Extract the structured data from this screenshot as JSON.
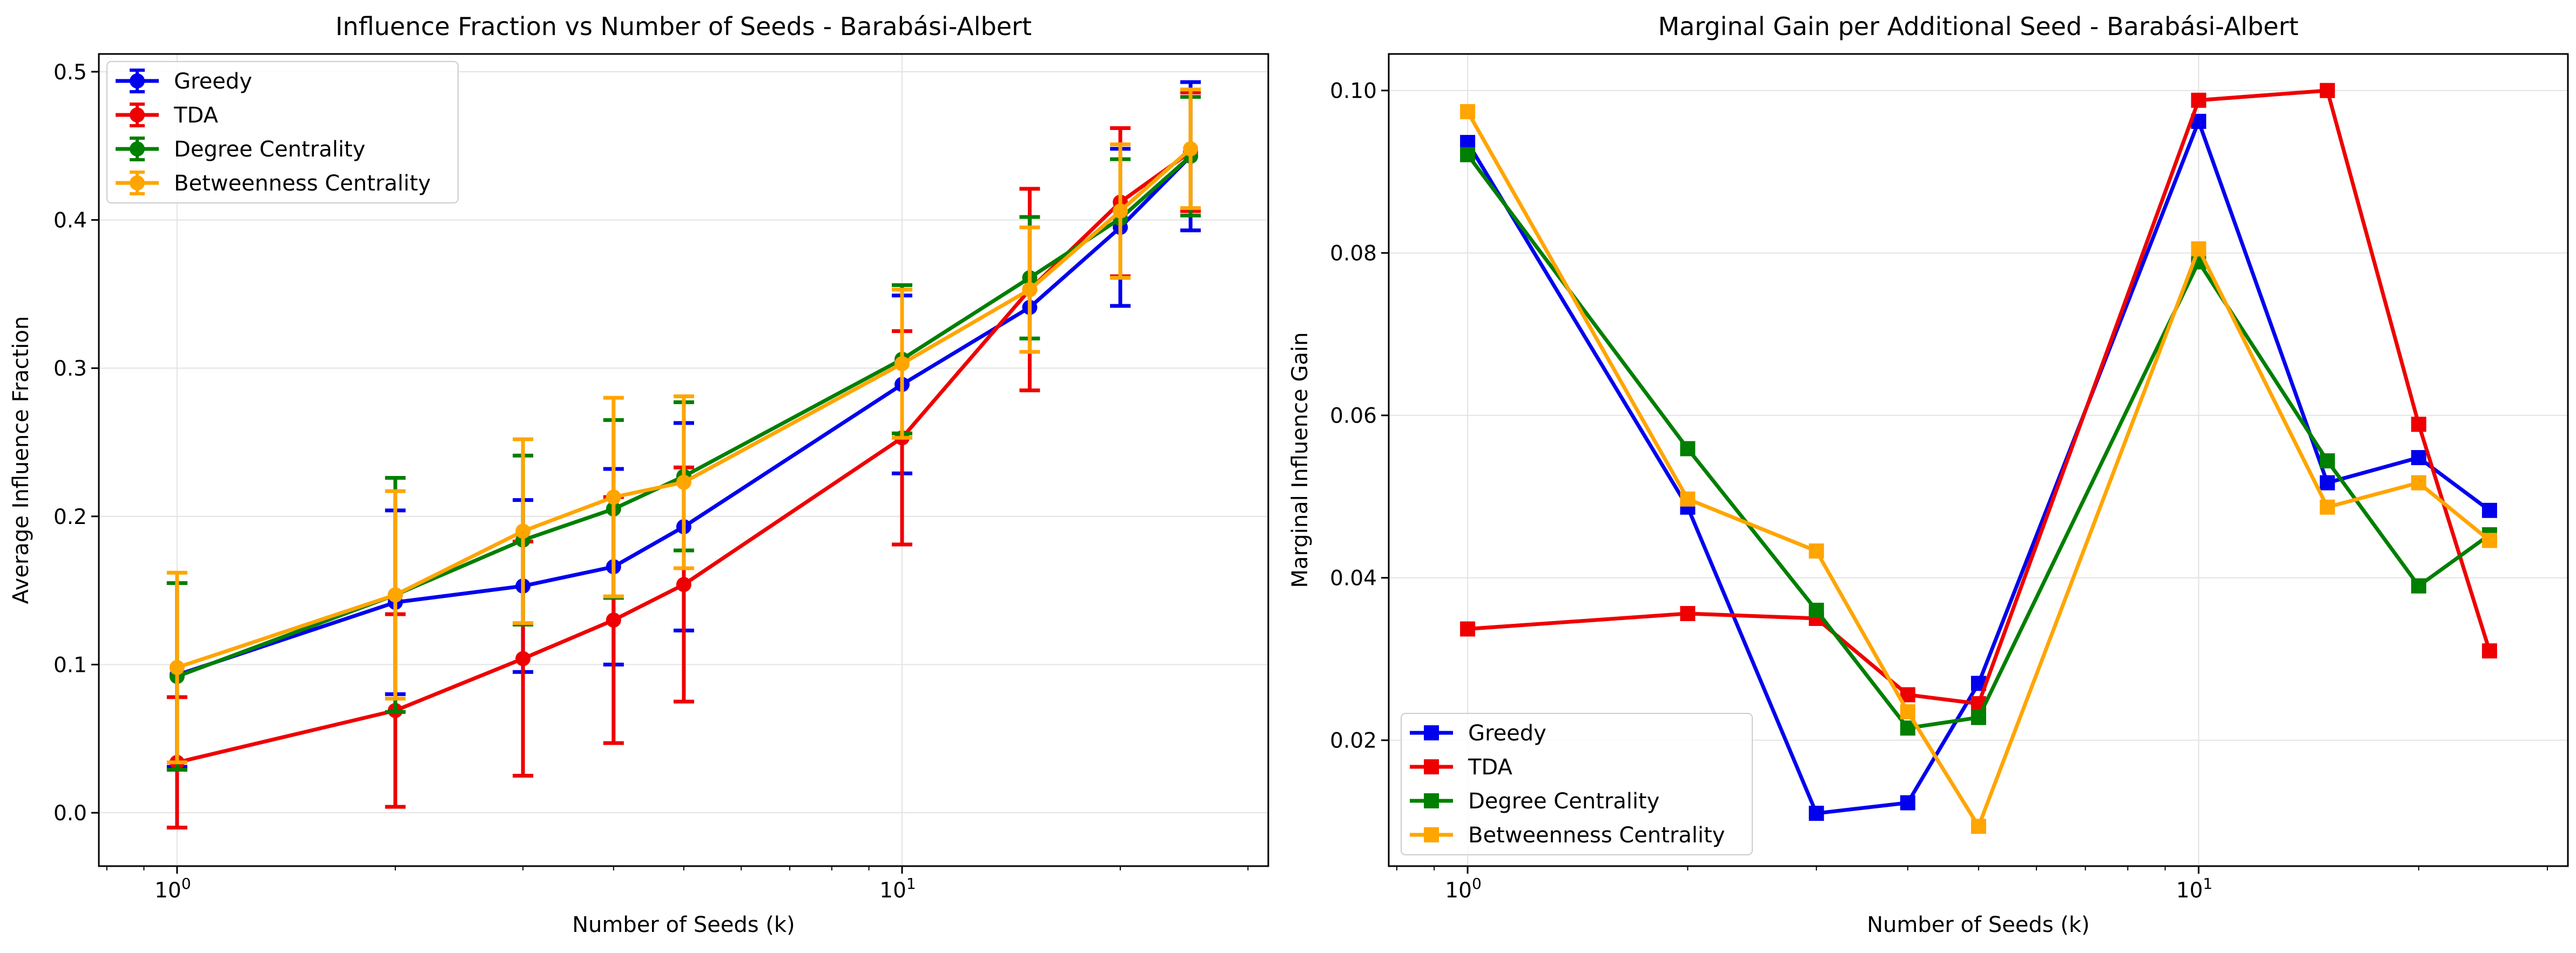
{
  "chart_data": [
    {
      "type": "line",
      "title": "Influence Fraction vs Number of Seeds - Barabási-Albert",
      "xlabel": "Number of Seeds (k)",
      "ylabel": "Average Influence Fraction",
      "x_scale": "log",
      "xlim": [
        0.78,
        32
      ],
      "ylim": [
        -0.036,
        0.512
      ],
      "x_ticks": [
        {
          "value": 1,
          "base": "10",
          "exp": "0"
        },
        {
          "value": 10,
          "base": "10",
          "exp": "1"
        }
      ],
      "y_ticks": [
        {
          "value": 0.0,
          "label": "0.0"
        },
        {
          "value": 0.1,
          "label": "0.1"
        },
        {
          "value": 0.2,
          "label": "0.2"
        },
        {
          "value": 0.3,
          "label": "0.3"
        },
        {
          "value": 0.4,
          "label": "0.4"
        },
        {
          "value": 0.5,
          "label": "0.5"
        }
      ],
      "grid": true,
      "legend_position": "top-left",
      "marker": "circle",
      "error_bars": true,
      "x": [
        1,
        2,
        3,
        4,
        5,
        10,
        15,
        20,
        25
      ],
      "series": [
        {
          "name": "Greedy",
          "color": "#0000ee",
          "values": [
            0.093,
            0.142,
            0.153,
            0.166,
            0.193,
            0.289,
            0.341,
            0.395,
            0.443
          ],
          "errors": [
            0.062,
            0.062,
            0.058,
            0.066,
            0.07,
            0.06,
            0.0,
            0.053,
            0.05
          ]
        },
        {
          "name": "TDA",
          "color": "#ee0000",
          "values": [
            0.034,
            0.069,
            0.104,
            0.13,
            0.154,
            0.253,
            0.353,
            0.412,
            0.446
          ],
          "errors": [
            0.044,
            0.065,
            0.079,
            0.083,
            0.079,
            0.072,
            0.068,
            0.05,
            0.04
          ]
        },
        {
          "name": "Degree Centrality",
          "color": "#007f00",
          "values": [
            0.092,
            0.147,
            0.184,
            0.205,
            0.227,
            0.306,
            0.361,
            0.401,
            0.443
          ],
          "errors": [
            0.063,
            0.079,
            0.057,
            0.06,
            0.05,
            0.05,
            0.041,
            0.04,
            0.04
          ]
        },
        {
          "name": "Betweenness Centrality",
          "color": "#ffa500",
          "values": [
            0.098,
            0.147,
            0.19,
            0.213,
            0.223,
            0.303,
            0.353,
            0.406,
            0.448
          ],
          "errors": [
            0.064,
            0.07,
            0.062,
            0.067,
            0.058,
            0.05,
            0.042,
            0.045,
            0.04
          ]
        }
      ]
    },
    {
      "type": "line",
      "title": "Marginal Gain per Additional Seed - Barabási-Albert",
      "xlabel": "Number of Seeds (k)",
      "ylabel": "Marginal Influence Gain",
      "x_scale": "log",
      "xlim": [
        0.78,
        32
      ],
      "ylim": [
        0.0045,
        0.1045
      ],
      "x_ticks": [
        {
          "value": 1,
          "base": "10",
          "exp": "0"
        },
        {
          "value": 10,
          "base": "10",
          "exp": "1"
        }
      ],
      "y_ticks": [
        {
          "value": 0.02,
          "label": "0.02"
        },
        {
          "value": 0.04,
          "label": "0.04"
        },
        {
          "value": 0.06,
          "label": "0.06"
        },
        {
          "value": 0.08,
          "label": "0.08"
        },
        {
          "value": 0.1,
          "label": "0.10"
        }
      ],
      "grid": true,
      "legend_position": "bottom-left",
      "marker": "square",
      "error_bars": false,
      "x": [
        1,
        2,
        3,
        4,
        5,
        10,
        15,
        20,
        25
      ],
      "series": [
        {
          "name": "Greedy",
          "color": "#0000ee",
          "values": [
            0.0936,
            0.0487,
            0.011,
            0.0123,
            0.027,
            0.0962,
            0.0517,
            0.0548,
            0.0483
          ]
        },
        {
          "name": "TDA",
          "color": "#ee0000",
          "values": [
            0.0337,
            0.0356,
            0.035,
            0.0256,
            0.0245,
            0.0988,
            0.1,
            0.0589,
            0.031
          ]
        },
        {
          "name": "Degree Centrality",
          "color": "#007f00",
          "values": [
            0.0921,
            0.0559,
            0.036,
            0.0215,
            0.0228,
            0.0789,
            0.0544,
            0.039,
            0.0453
          ]
        },
        {
          "name": "Betweenness Centrality",
          "color": "#ffa500",
          "values": [
            0.0974,
            0.0497,
            0.0433,
            0.0235,
            0.0094,
            0.0805,
            0.0487,
            0.0517,
            0.0446
          ]
        }
      ]
    }
  ]
}
